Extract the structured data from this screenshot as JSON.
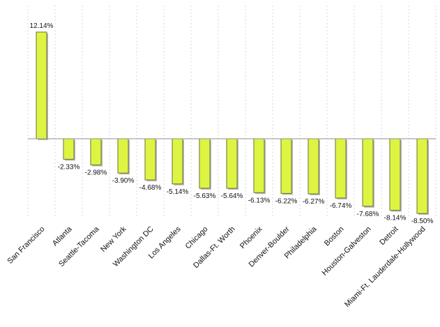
{
  "colors": {
    "bar_fill": "#ddf542",
    "bar_stroke": "#6f6f3a",
    "grid": "#d7d7d7",
    "axis": "#8f8f8f",
    "text": "#111111"
  },
  "chart_data": {
    "type": "bar",
    "categories": [
      "San Francisco",
      "Atlanta",
      "Seattle-Tacoma",
      "New York",
      "Washington DC",
      "Los Angeles",
      "Chicago",
      "Dallas-Ft. Worth",
      "Phoenix",
      "Denver-Boulder",
      "Philadelphia",
      "Boston",
      "Houston-Galveston",
      "Detroit",
      "Miami-Ft. Lauderdale-Hollywood"
    ],
    "values": [
      12.14,
      -2.33,
      -2.98,
      -3.9,
      -4.68,
      -5.14,
      -5.63,
      -5.64,
      -6.13,
      -6.22,
      -6.27,
      -6.74,
      -7.68,
      -8.14,
      -8.5
    ],
    "value_labels": [
      "12.14%",
      "-2.33%",
      "-2.98%",
      "-3.90%",
      "-4.68%",
      "-5.14%",
      "-5.63%",
      "-5.64%",
      "-6.13%",
      "-6.22%",
      "-6.27%",
      "-6.74%",
      "-7.68%",
      "-8.14%",
      "-8.50%"
    ],
    "title": "",
    "xlabel": "",
    "ylabel": "",
    "ylim": [
      -9.5,
      12.14
    ],
    "grid": true,
    "legend": "none"
  }
}
